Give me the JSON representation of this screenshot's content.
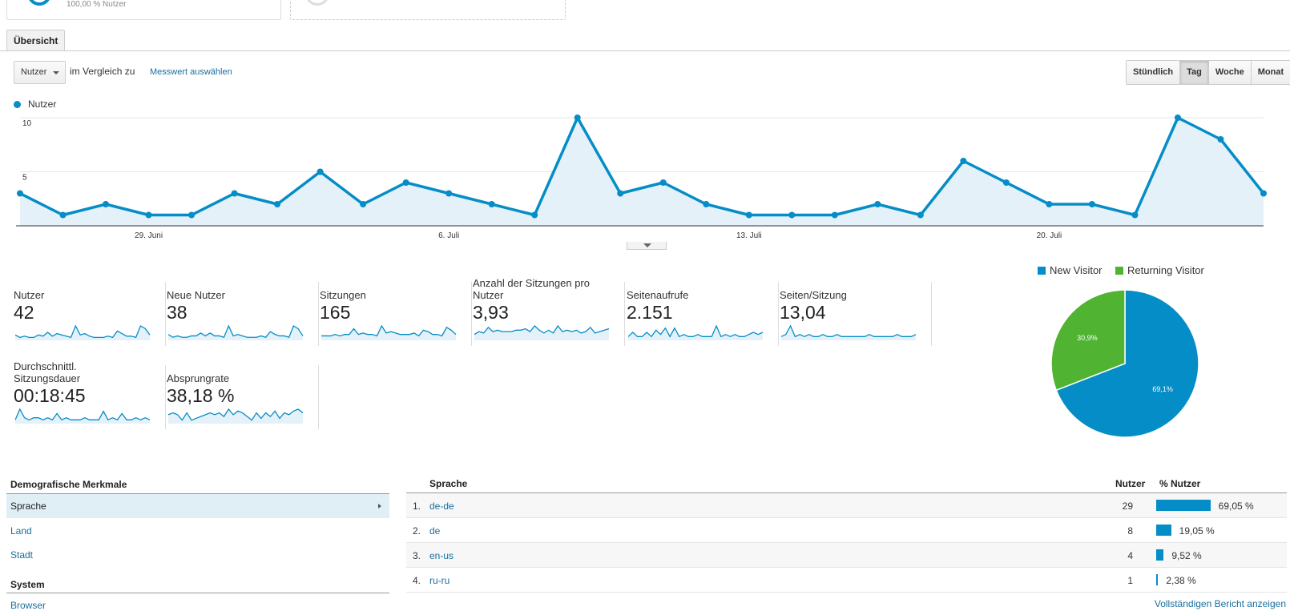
{
  "segment": {
    "percent_label": "100,00 % Nutzer"
  },
  "tab": {
    "label": "Übersicht"
  },
  "controls": {
    "metric_select": "Nutzer",
    "compare_text": "im Vergleich zu",
    "compare_link": "Messwert auswählen",
    "periods": [
      "Stündlich",
      "Tag",
      "Woche",
      "Monat"
    ],
    "active_period": "Tag"
  },
  "chart_data": {
    "type": "area",
    "series": [
      {
        "name": "Nutzer",
        "values": [
          3,
          1,
          2,
          1,
          1,
          3,
          2,
          5,
          2,
          4,
          3,
          2,
          1,
          10,
          3,
          4,
          2,
          1,
          1,
          1,
          2,
          1,
          6,
          4,
          2,
          2,
          1,
          10,
          8,
          3
        ]
      }
    ],
    "y_ticks": [
      "5",
      "10"
    ],
    "ylim": [
      0,
      10
    ],
    "x_tick_labels": [
      "29. Juni",
      "6. Juli",
      "13. Juli",
      "20. Juli"
    ],
    "x_tick_indices": [
      3,
      10,
      17,
      24
    ],
    "color": "#058dc7"
  },
  "scorecards": [
    {
      "label": "Nutzer",
      "value": "42",
      "spark": [
        3,
        1,
        2,
        1,
        1,
        3,
        2,
        5,
        2,
        4,
        3,
        2,
        1,
        10,
        3,
        4,
        2,
        1,
        1,
        1,
        2,
        1,
        6,
        4,
        2,
        2,
        1,
        10,
        8,
        3
      ]
    },
    {
      "label": "Neue Nutzer",
      "value": "38",
      "spark": [
        3,
        1,
        2,
        1,
        1,
        2,
        2,
        4,
        2,
        4,
        2,
        2,
        1,
        9,
        2,
        3,
        2,
        1,
        1,
        1,
        2,
        1,
        5,
        3,
        2,
        2,
        1,
        9,
        7,
        2
      ]
    },
    {
      "label": "Sitzungen",
      "value": "165",
      "spark": [
        2,
        2,
        2,
        3,
        2,
        3,
        3,
        7,
        3,
        4,
        3,
        3,
        2,
        9,
        4,
        5,
        4,
        3,
        3,
        3,
        4,
        2,
        6,
        5,
        3,
        3,
        2,
        8,
        6,
        3
      ]
    },
    {
      "label": "Anzahl der Sitzungen pro Nutzer",
      "value": "3,93",
      "spark": [
        3,
        5,
        4,
        8,
        5,
        6,
        5,
        5,
        5,
        6,
        6,
        7,
        5,
        9,
        6,
        4,
        6,
        4,
        9,
        5,
        6,
        5,
        6,
        4,
        5,
        8,
        4,
        5,
        6,
        7
      ]
    },
    {
      "label": "Seitenaufrufe",
      "value": "2.151",
      "spark": [
        1,
        3,
        1,
        1,
        3,
        1,
        4,
        2,
        5,
        1,
        5,
        1,
        2,
        1,
        1,
        2,
        1,
        1,
        1,
        6,
        1,
        2,
        1,
        2,
        1,
        1,
        2,
        3,
        2,
        3
      ]
    },
    {
      "label": "Seiten/Sitzung",
      "value": "13,04",
      "spark": [
        1,
        2,
        6,
        1,
        2,
        1,
        2,
        1,
        1,
        2,
        1,
        1,
        2,
        1,
        1,
        1,
        1,
        1,
        1,
        2,
        1,
        1,
        1,
        1,
        1,
        2,
        1,
        1,
        1,
        2
      ]
    },
    {
      "label": "Durchschnittl. Sitzungsdauer",
      "value": "00:18:45",
      "spark": [
        1,
        6,
        2,
        1,
        2,
        2,
        1,
        2,
        1,
        4,
        1,
        2,
        1,
        1,
        1,
        2,
        1,
        1,
        1,
        5,
        1,
        2,
        1,
        4,
        1,
        1,
        2,
        1,
        2,
        1
      ]
    },
    {
      "label": "Absprungrate",
      "value": "38,18 %",
      "spark": [
        4,
        5,
        4,
        1,
        5,
        1,
        2,
        3,
        4,
        5,
        4,
        5,
        3,
        7,
        4,
        6,
        5,
        3,
        1,
        5,
        2,
        5,
        3,
        6,
        2,
        5,
        4,
        6,
        7,
        5
      ]
    }
  ],
  "pie": {
    "legend": [
      {
        "name": "New Visitor",
        "color": "#058dc7"
      },
      {
        "name": "Returning Visitor",
        "color": "#50b432"
      }
    ],
    "values": [
      69.1,
      30.9
    ],
    "labels": [
      "69,1%",
      "30,9%"
    ]
  },
  "demographics": {
    "heading": "Demografische Merkmale",
    "items": [
      "Sprache",
      "Land",
      "Stadt"
    ],
    "system_heading": "System",
    "system_items": [
      "Browser"
    ]
  },
  "table": {
    "col_label": "Sprache",
    "col_users": "Nutzer",
    "col_pct": "% Nutzer",
    "rows": [
      {
        "num": "1.",
        "lang": "de-de",
        "users": "29",
        "pct": "69,05 %",
        "frac": 0.6905
      },
      {
        "num": "2.",
        "lang": "de",
        "users": "8",
        "pct": "19,05 %",
        "frac": 0.1905
      },
      {
        "num": "3.",
        "lang": "en-us",
        "users": "4",
        "pct": "9,52 %",
        "frac": 0.0952
      },
      {
        "num": "4.",
        "lang": "ru-ru",
        "users": "1",
        "pct": "2,38 %",
        "frac": 0.0238
      }
    ],
    "full_report": "Vollständigen Bericht anzeigen"
  }
}
